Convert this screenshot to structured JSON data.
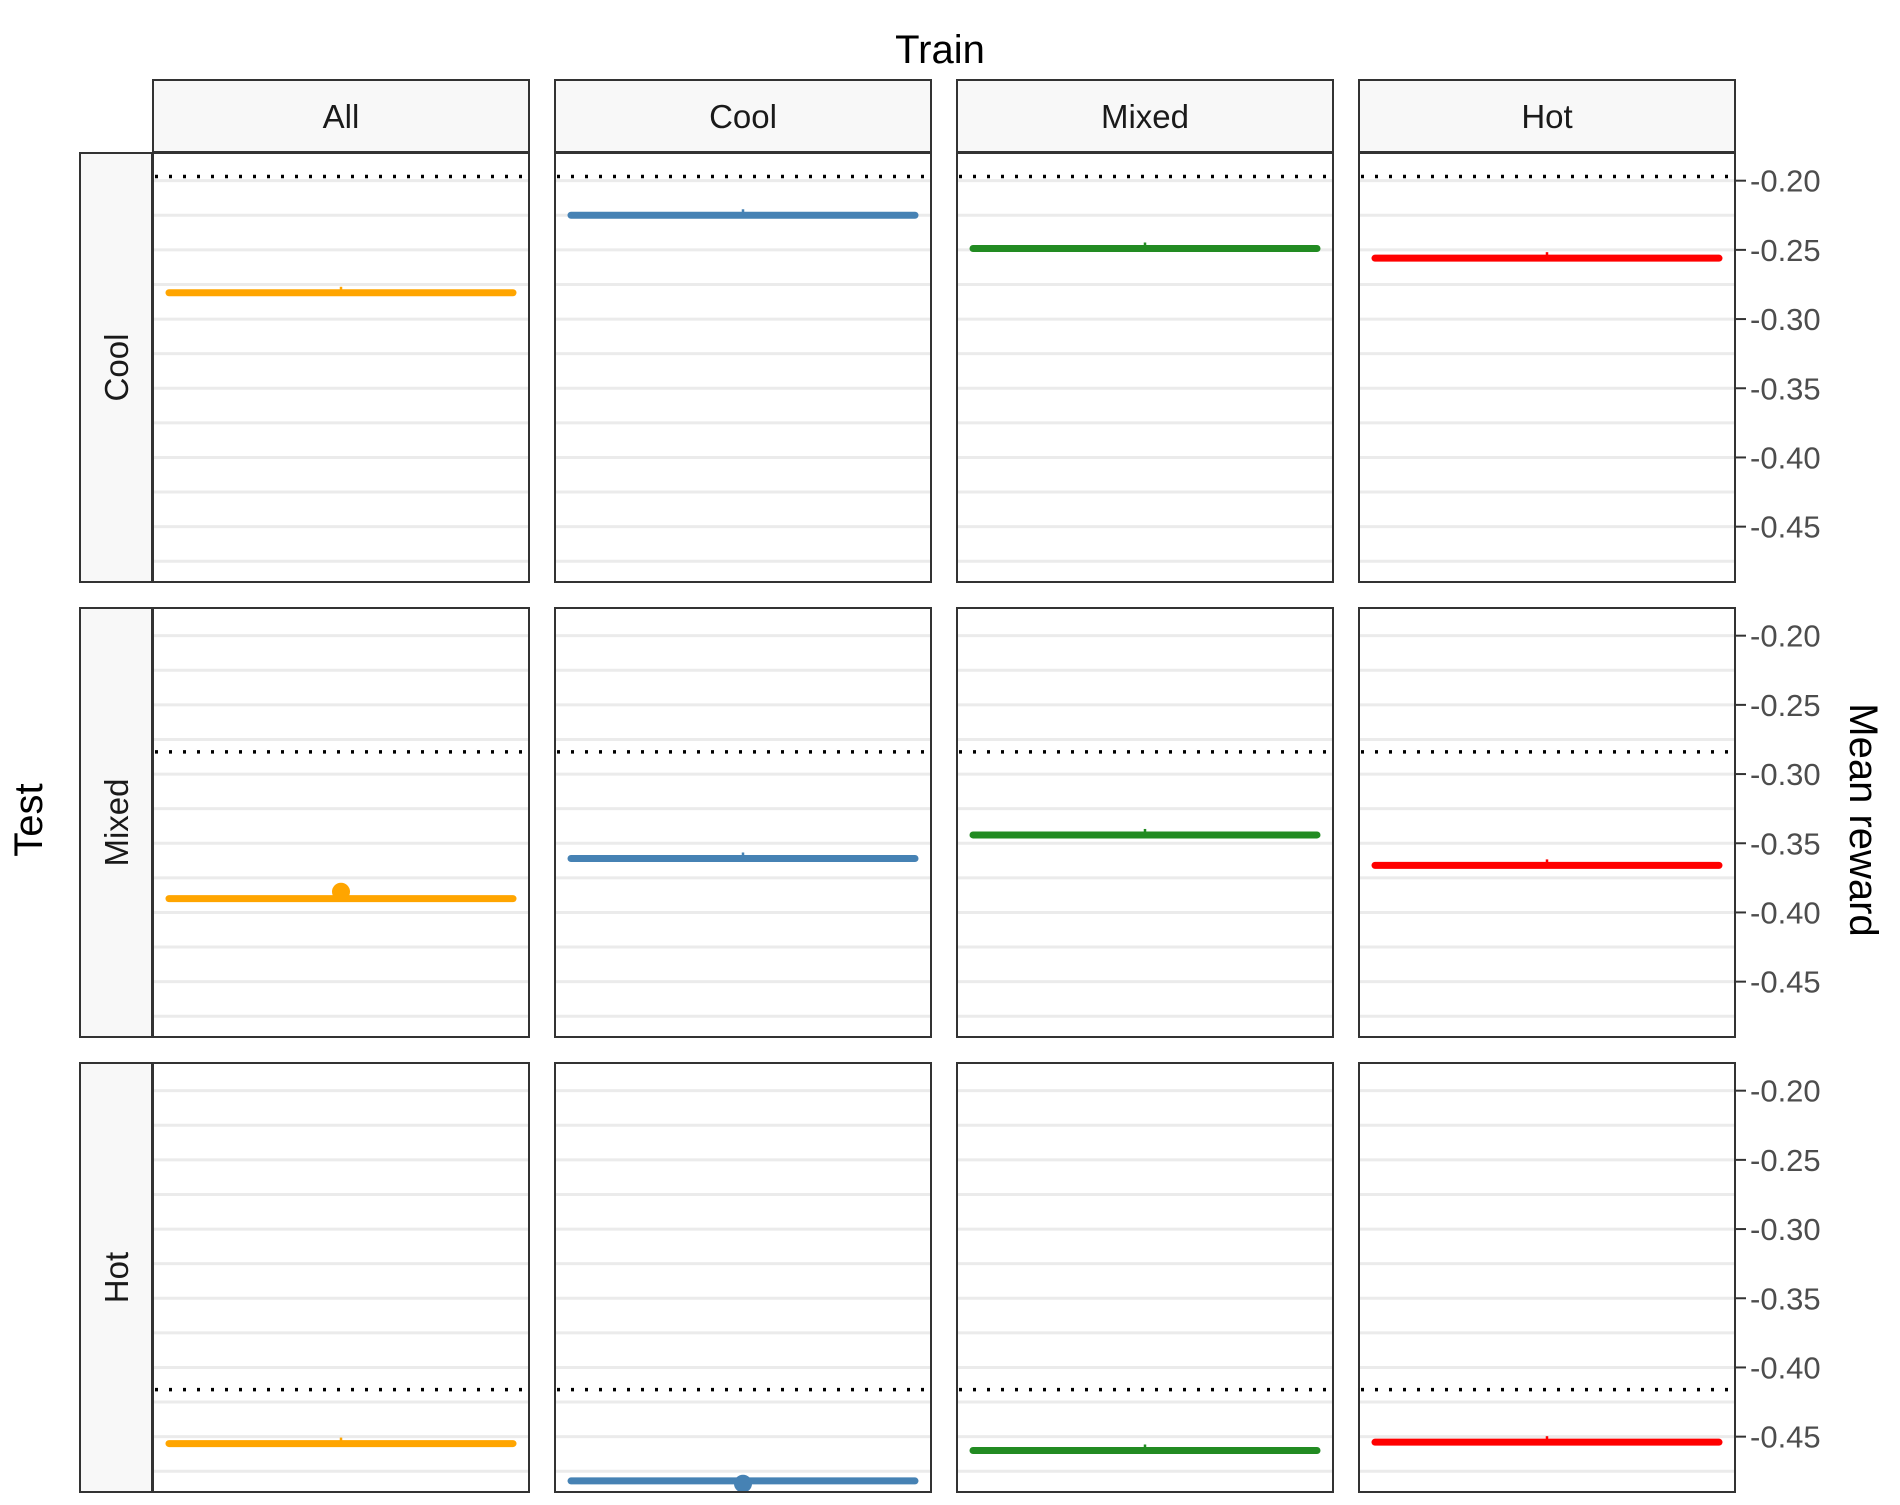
{
  "chart_data": {
    "type": "line",
    "title": "",
    "facet_column_title": "Train",
    "facet_row_title": "Test",
    "ylabel": "Mean reward",
    "columns": [
      "All",
      "Cool",
      "Mixed",
      "Hot"
    ],
    "rows": [
      "Cool",
      "Mixed",
      "Hot"
    ],
    "ylim": [
      -0.49,
      -0.18
    ],
    "yticks": [
      -0.2,
      -0.25,
      -0.3,
      -0.35,
      -0.4,
      -0.45
    ],
    "ytick_labels": [
      "-0.20",
      "-0.25",
      "-0.30",
      "-0.35",
      "-0.40",
      "-0.45"
    ],
    "grid": true,
    "colors": {
      "All": "#FFA500",
      "Cool": "#4682B4",
      "Mixed": "#228B22",
      "Hot": "#FF0000"
    },
    "reference_lines": {
      "Cool": -0.197,
      "Mixed": -0.284,
      "Hot": -0.416
    },
    "panels": [
      {
        "train": "All",
        "test": "Cool",
        "value": -0.281
      },
      {
        "train": "Cool",
        "test": "Cool",
        "value": -0.225
      },
      {
        "train": "Mixed",
        "test": "Cool",
        "value": -0.249
      },
      {
        "train": "Hot",
        "test": "Cool",
        "value": -0.256
      },
      {
        "train": "All",
        "test": "Mixed",
        "value": -0.39,
        "marker": -0.385
      },
      {
        "train": "Cool",
        "test": "Mixed",
        "value": -0.361
      },
      {
        "train": "Mixed",
        "test": "Mixed",
        "value": -0.344
      },
      {
        "train": "Hot",
        "test": "Mixed",
        "value": -0.366
      },
      {
        "train": "All",
        "test": "Hot",
        "value": -0.455
      },
      {
        "train": "Cool",
        "test": "Hot",
        "value": -0.482,
        "marker": -0.484
      },
      {
        "train": "Mixed",
        "test": "Hot",
        "value": -0.46
      },
      {
        "train": "Hot",
        "test": "Hot",
        "value": -0.454
      }
    ]
  }
}
